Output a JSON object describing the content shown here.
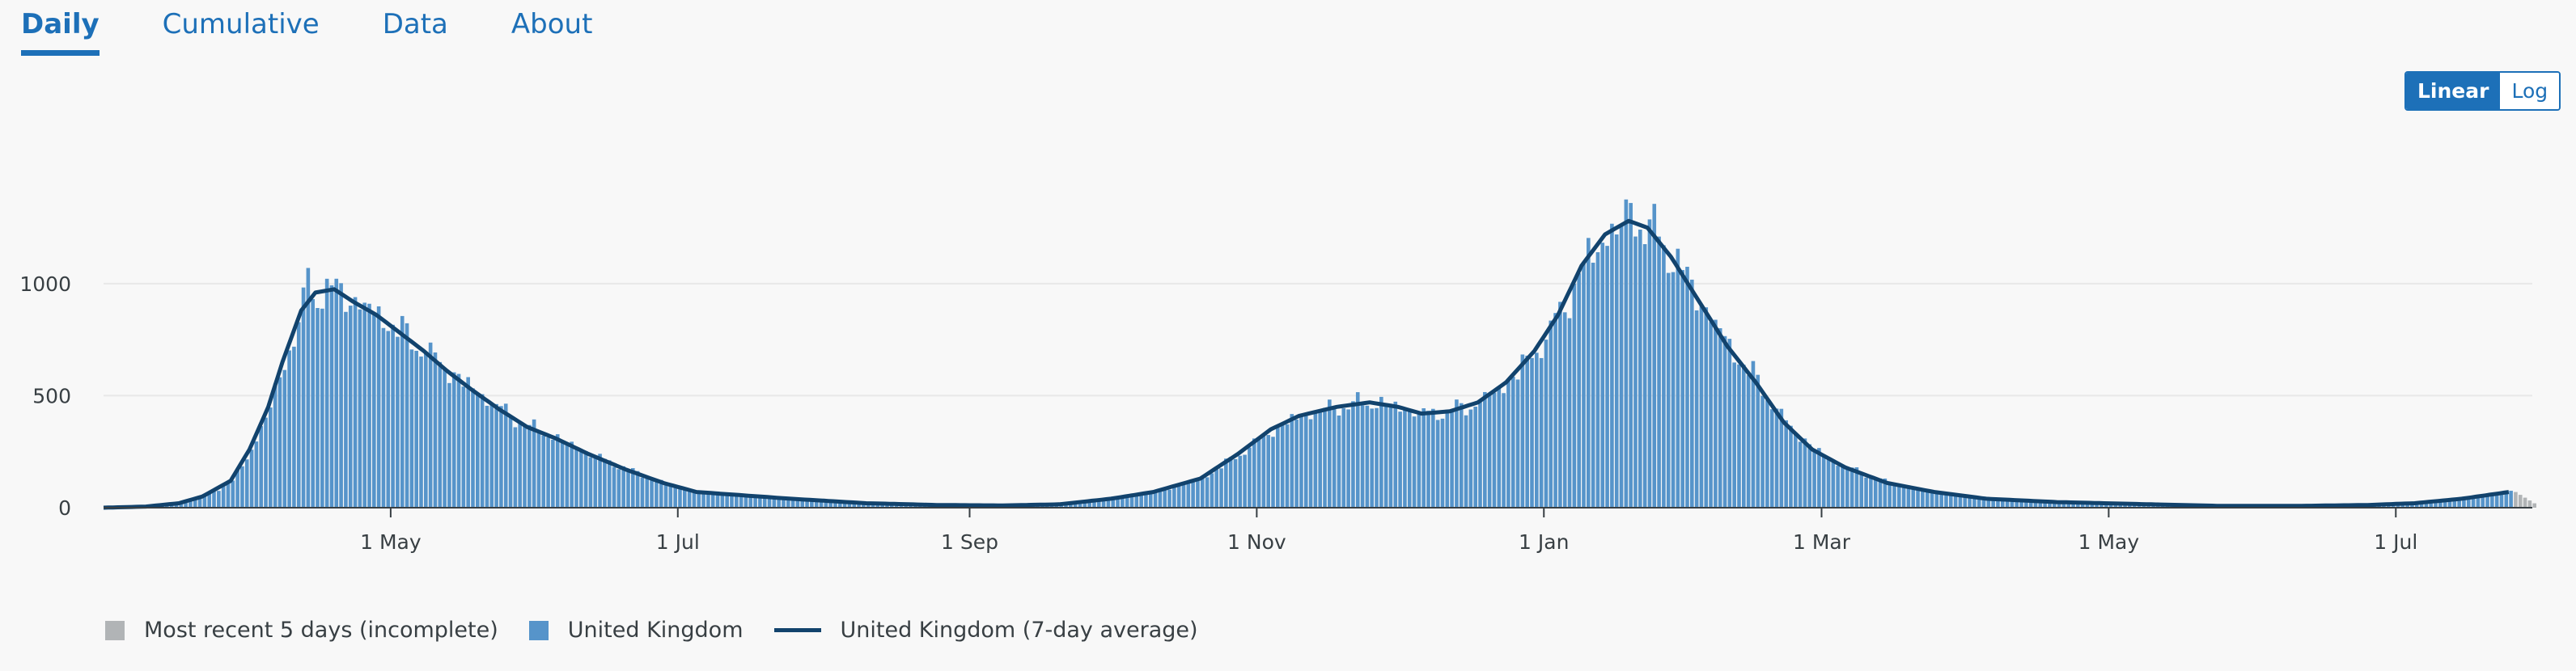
{
  "tabs": [
    {
      "label": "Daily",
      "active": true
    },
    {
      "label": "Cumulative",
      "active": false
    },
    {
      "label": "Data",
      "active": false
    },
    {
      "label": "About",
      "active": false
    }
  ],
  "scale_toggle": {
    "linear": "Linear",
    "log": "Log",
    "selected": "Linear"
  },
  "colors": {
    "bar": "#5694ca",
    "incomplete": "#b1b4b6",
    "average": "#12436d",
    "accent": "#1d70b8"
  },
  "legend": [
    {
      "label": "Most recent 5 days (incomplete)",
      "color": "#b1b4b6",
      "kind": "square"
    },
    {
      "label": "United Kingdom",
      "color": "#5694ca",
      "kind": "square"
    },
    {
      "label": "United Kingdom (7-day average)",
      "color": "#12436d",
      "kind": "line"
    }
  ],
  "chart_data": {
    "type": "bar",
    "title": "",
    "xlabel": "",
    "ylabel": "",
    "ylim": [
      0,
      1400
    ],
    "x_range": [
      "2020-03-01",
      "2021-07-30"
    ],
    "yticks": [
      0,
      500,
      1000
    ],
    "xticks": [
      {
        "label": "1 May",
        "date": "2020-05-01"
      },
      {
        "label": "1 Jul",
        "date": "2020-07-01"
      },
      {
        "label": "1 Sep",
        "date": "2020-09-01"
      },
      {
        "label": "1 Nov",
        "date": "2020-11-01"
      },
      {
        "label": "1 Jan",
        "date": "2021-01-01"
      },
      {
        "label": "1 Mar",
        "date": "2021-03-01"
      },
      {
        "label": "1 May",
        "date": "2021-05-01"
      },
      {
        "label": "1 Jul",
        "date": "2021-07-01"
      }
    ],
    "grid": "horizontal",
    "legend_position": "bottom-left",
    "incomplete_days": 5,
    "series": [
      {
        "name": "United Kingdom (7-day average)",
        "kind": "line",
        "points": [
          [
            "2020-03-01",
            0
          ],
          [
            "2020-03-10",
            5
          ],
          [
            "2020-03-17",
            20
          ],
          [
            "2020-03-22",
            50
          ],
          [
            "2020-03-28",
            120
          ],
          [
            "2020-04-01",
            260
          ],
          [
            "2020-04-05",
            450
          ],
          [
            "2020-04-08",
            650
          ],
          [
            "2020-04-12",
            880
          ],
          [
            "2020-04-15",
            960
          ],
          [
            "2020-04-19",
            975
          ],
          [
            "2020-04-23",
            920
          ],
          [
            "2020-04-28",
            860
          ],
          [
            "2020-05-03",
            780
          ],
          [
            "2020-05-08",
            700
          ],
          [
            "2020-05-13",
            610
          ],
          [
            "2020-05-18",
            530
          ],
          [
            "2020-05-24",
            440
          ],
          [
            "2020-05-30",
            360
          ],
          [
            "2020-06-05",
            310
          ],
          [
            "2020-06-12",
            240
          ],
          [
            "2020-06-20",
            170
          ],
          [
            "2020-06-28",
            110
          ],
          [
            "2020-07-05",
            70
          ],
          [
            "2020-07-15",
            55
          ],
          [
            "2020-07-25",
            40
          ],
          [
            "2020-08-10",
            20
          ],
          [
            "2020-08-25",
            12
          ],
          [
            "2020-09-08",
            10
          ],
          [
            "2020-09-20",
            15
          ],
          [
            "2020-10-01",
            40
          ],
          [
            "2020-10-10",
            70
          ],
          [
            "2020-10-20",
            130
          ],
          [
            "2020-10-28",
            240
          ],
          [
            "2020-11-04",
            350
          ],
          [
            "2020-11-10",
            410
          ],
          [
            "2020-11-18",
            450
          ],
          [
            "2020-11-25",
            470
          ],
          [
            "2020-12-01",
            450
          ],
          [
            "2020-12-06",
            420
          ],
          [
            "2020-12-12",
            430
          ],
          [
            "2020-12-18",
            470
          ],
          [
            "2020-12-24",
            560
          ],
          [
            "2020-12-30",
            700
          ],
          [
            "2021-01-04",
            860
          ],
          [
            "2021-01-09",
            1080
          ],
          [
            "2021-01-14",
            1220
          ],
          [
            "2021-01-19",
            1280
          ],
          [
            "2021-01-23",
            1250
          ],
          [
            "2021-01-28",
            1120
          ],
          [
            "2021-02-03",
            920
          ],
          [
            "2021-02-09",
            720
          ],
          [
            "2021-02-15",
            560
          ],
          [
            "2021-02-21",
            380
          ],
          [
            "2021-02-27",
            260
          ],
          [
            "2021-03-06",
            180
          ],
          [
            "2021-03-15",
            110
          ],
          [
            "2021-03-25",
            70
          ],
          [
            "2021-04-05",
            40
          ],
          [
            "2021-04-20",
            25
          ],
          [
            "2021-05-10",
            15
          ],
          [
            "2021-05-25",
            8
          ],
          [
            "2021-06-10",
            8
          ],
          [
            "2021-06-25",
            12
          ],
          [
            "2021-07-05",
            20
          ],
          [
            "2021-07-15",
            40
          ],
          [
            "2021-07-25",
            70
          ]
        ]
      }
    ],
    "bar_series": {
      "name": "United Kingdom",
      "daily_peaks": [
        {
          "date": "2020-04-13",
          "value": 1070
        },
        {
          "date": "2021-01-19",
          "value": 1360
        }
      ]
    }
  }
}
